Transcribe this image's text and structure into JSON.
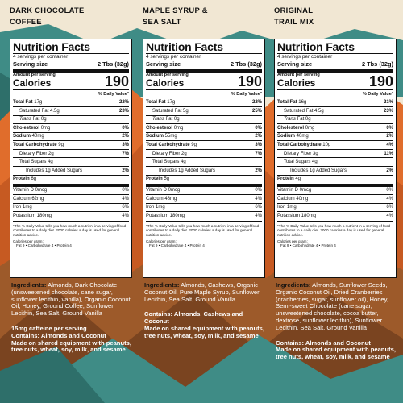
{
  "colors": {
    "background": "#f1e7d3",
    "mountain_dark": "#7a4420",
    "mountain_mid": "#9d5a2a",
    "mountain_orange": "#e06d2c",
    "sky_teal": "#3f8c86",
    "text_white": "#ffffff",
    "panel_white": "#ffffff"
  },
  "products": [
    {
      "title_lines": [
        "DARK CHOCOLATE",
        "COFFEE"
      ],
      "panel": {
        "title": "Nutrition Facts",
        "servings": "4 servings per container",
        "serving_size_label": "Serving size",
        "serving_size_value": "2 Tbs (32g)",
        "amount_per_serving": "Amount per serving",
        "calories_label": "Calories",
        "calories_value": "190",
        "dv_header": "% Daily Value*",
        "rows": [
          {
            "label": "Total Fat",
            "amount": "17g",
            "dv": "22%",
            "style": "bold",
            "indent": 0
          },
          {
            "label": "Saturated Fat",
            "amount": "4.5g",
            "dv": "23%",
            "style": "normal",
            "indent": 1
          },
          {
            "label": "Trans",
            "amount": "Fat 0g",
            "dv": "",
            "style": "italic",
            "indent": 1
          },
          {
            "label": "Cholesterol",
            "amount": "0mg",
            "dv": "0%",
            "style": "bold",
            "indent": 0
          },
          {
            "label": "Sodium",
            "amount": "40mg",
            "dv": "2%",
            "style": "bold",
            "indent": 0
          },
          {
            "label": "Total Carbohydrate",
            "amount": "9g",
            "dv": "3%",
            "style": "bold",
            "indent": 0
          },
          {
            "label": "Dietary Fiber",
            "amount": "2g",
            "dv": "7%",
            "style": "normal",
            "indent": 1
          },
          {
            "label": "Total Sugars",
            "amount": "4g",
            "dv": "",
            "style": "normal",
            "indent": 1
          },
          {
            "label": "Includes 1g Added Sugars",
            "amount": "",
            "dv": "2%",
            "style": "normal",
            "indent": 2
          },
          {
            "label": "Protein",
            "amount": "6g",
            "dv": "",
            "style": "bold",
            "indent": 0
          }
        ],
        "vitamins": [
          {
            "label": "Vitamin D 0mcg",
            "dv": "0%"
          },
          {
            "label": "Calcium 62mg",
            "dv": "4%"
          },
          {
            "label": "Iron 1mg",
            "dv": "6%"
          },
          {
            "label": "Potassium 180mg",
            "dv": "4%"
          }
        ],
        "footnote": "*The % Daily Value tells you how much a nutrient in a serving of food contributes to a daily diet. 2000 calories a day is used for general nutrition advice.",
        "cal_per_gram": "Calories per gram:",
        "cal_per_gram_values": "Fat 9  •  Carbohydrate 4  •  Protein 4"
      },
      "ingredients_label": "Ingredients:",
      "ingredients_text": " Almonds, Dark Chocolate (unsweetened chocolate, cane sugar, sunflower lecithin, vanilla), Organic Coconut Oil, Honey, Ground Coffee, Sunflower Lecithin, Sea Salt, Ground Vanilla",
      "caffeine": "15mg caffeine per serving",
      "contains": "Contains: Almonds and Coconut",
      "made_on": "Made on shared equipment with peanuts, tree nuts, wheat, soy, milk, and sesame"
    },
    {
      "title_lines": [
        "MAPLE SYRUP &",
        "SEA SALT"
      ],
      "panel": {
        "title": "Nutrition Facts",
        "servings": "4 servings per container",
        "serving_size_label": "Serving size",
        "serving_size_value": "2 Tbs (32g)",
        "amount_per_serving": "Amount per serving",
        "calories_label": "Calories",
        "calories_value": "190",
        "dv_header": "% Daily Value*",
        "rows": [
          {
            "label": "Total Fat",
            "amount": "17g",
            "dv": "22%",
            "style": "bold",
            "indent": 0
          },
          {
            "label": "Saturated Fat",
            "amount": "5g",
            "dv": "25%",
            "style": "normal",
            "indent": 1
          },
          {
            "label": "Trans",
            "amount": "Fat 0g",
            "dv": "",
            "style": "italic",
            "indent": 1
          },
          {
            "label": "Cholesterol",
            "amount": "0mg",
            "dv": "0%",
            "style": "bold",
            "indent": 0
          },
          {
            "label": "Sodium",
            "amount": "55mg",
            "dv": "2%",
            "style": "bold",
            "indent": 0
          },
          {
            "label": "Total Carbohydrate",
            "amount": "9g",
            "dv": "3%",
            "style": "bold",
            "indent": 0
          },
          {
            "label": "Dietary Fiber",
            "amount": "2g",
            "dv": "7%",
            "style": "normal",
            "indent": 1
          },
          {
            "label": "Total Sugars",
            "amount": "4g",
            "dv": "",
            "style": "normal",
            "indent": 1
          },
          {
            "label": "Includes 1g Added Sugars",
            "amount": "",
            "dv": "2%",
            "style": "normal",
            "indent": 2
          },
          {
            "label": "Protein",
            "amount": "5g",
            "dv": "",
            "style": "bold",
            "indent": 0
          }
        ],
        "vitamins": [
          {
            "label": "Vitamin D 0mcg",
            "dv": "0%"
          },
          {
            "label": "Calcium 48mg",
            "dv": "4%"
          },
          {
            "label": "Iron 1mg",
            "dv": "6%"
          },
          {
            "label": "Potassium 180mg",
            "dv": "4%"
          }
        ],
        "footnote": "*The % Daily Value tells you how much a nutrient in a serving of food contributes to a daily diet. 2000 calories a day is used for general nutrition advice.",
        "cal_per_gram": "Calories per gram:",
        "cal_per_gram_values": "Fat 9  •  Carbohydrate 4  •  Protein 4"
      },
      "ingredients_label": "Ingredients:",
      "ingredients_text": " Almonds, Cashews, Organic Coconut Oil, Pure Maple Syrup, Sunflower Lecithin, Sea Salt, Ground Vanilla",
      "caffeine": "",
      "contains": "Contains: Almonds, Cashews and Coconut",
      "made_on": "Made on shared equipment with peanuts, tree nuts, wheat, soy, milk, and sesame"
    },
    {
      "title_lines": [
        "ORIGINAL",
        "TRAIL MIX"
      ],
      "panel": {
        "title": "Nutrition Facts",
        "servings": "4 servings per container",
        "serving_size_label": "Serving size",
        "serving_size_value": "2 Tbs (32g)",
        "amount_per_serving": "Amount per serving",
        "calories_label": "Calories",
        "calories_value": "190",
        "dv_header": "% Daily Value*",
        "rows": [
          {
            "label": "Total Fat",
            "amount": "16g",
            "dv": "21%",
            "style": "bold",
            "indent": 0
          },
          {
            "label": "Saturated Fat",
            "amount": "4.5g",
            "dv": "23%",
            "style": "normal",
            "indent": 1
          },
          {
            "label": "Trans",
            "amount": "Fat 0g",
            "dv": "",
            "style": "italic",
            "indent": 1
          },
          {
            "label": "Cholesterol",
            "amount": "0mg",
            "dv": "0%",
            "style": "bold",
            "indent": 0
          },
          {
            "label": "Sodium",
            "amount": "40mg",
            "dv": "2%",
            "style": "bold",
            "indent": 0
          },
          {
            "label": "Total Carbohydrate",
            "amount": "10g",
            "dv": "4%",
            "style": "bold",
            "indent": 0
          },
          {
            "label": "Dietary Fiber",
            "amount": "3g",
            "dv": "11%",
            "style": "normal",
            "indent": 1
          },
          {
            "label": "Total Sugars",
            "amount": "4g",
            "dv": "",
            "style": "normal",
            "indent": 1
          },
          {
            "label": "Includes 1g Added Sugars",
            "amount": "",
            "dv": "2%",
            "style": "normal",
            "indent": 2
          },
          {
            "label": "Protein",
            "amount": "4g",
            "dv": "",
            "style": "bold",
            "indent": 0
          }
        ],
        "vitamins": [
          {
            "label": "Vitamin D 0mcg",
            "dv": "0%"
          },
          {
            "label": "Calcium 40mg",
            "dv": "4%"
          },
          {
            "label": "Iron 1mg",
            "dv": "6%"
          },
          {
            "label": "Potassium 180mg",
            "dv": "4%"
          }
        ],
        "footnote": "*The % Daily Value tells you how much a nutrient in a serving of food contributes to a daily diet. 2000 calories a day is used for general nutrition advice.",
        "cal_per_gram": "Calories per gram:",
        "cal_per_gram_values": "Fat 9  •  Carbohydrate 4  •  Protein 4"
      },
      "ingredients_label": "Ingredients:",
      "ingredients_text": " Almonds, Sunflower Seeds, Organic Coconut Oil, Dried Cranberries (cranberries, sugar, sunflower oil), Honey, Semi-sweet Chocolate (cane sugar, unsweetened chocolate, cocoa butter, dextrose, sunflower lecithin), Sunflower Lecithin, Sea Salt, Ground Vanilla",
      "caffeine": "",
      "contains": "Contains: Almonds and Coconut",
      "made_on": "Made on shared equipment with peanuts, tree nuts, wheat, soy, milk, and sesame"
    }
  ]
}
